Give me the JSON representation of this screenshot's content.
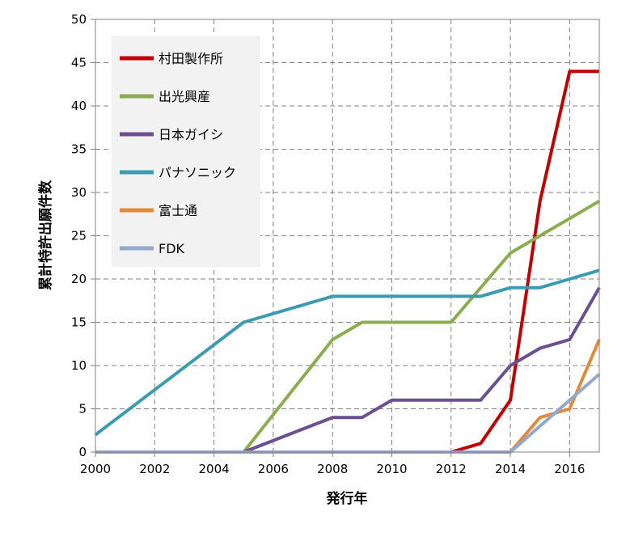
{
  "chart_data": {
    "type": "line",
    "title": "",
    "xlabel": "発行年",
    "ylabel": "累計特許出願件数",
    "xlim": [
      2000,
      2017
    ],
    "ylim": [
      0,
      50
    ],
    "x_ticks": [
      2000,
      2002,
      2004,
      2006,
      2008,
      2010,
      2012,
      2014,
      2016
    ],
    "y_ticks": [
      0,
      5,
      10,
      15,
      20,
      25,
      30,
      35,
      40,
      45,
      50
    ],
    "grid": true,
    "legend_position": "top-left",
    "series": [
      {
        "name": "村田製作所",
        "color": "#c00000",
        "x": [
          2000,
          2012,
          2013,
          2014,
          2015,
          2016,
          2017
        ],
        "y": [
          0,
          0,
          1,
          6,
          29,
          44,
          44
        ]
      },
      {
        "name": "出光興産",
        "color": "#8cac50",
        "x": [
          2000,
          2005,
          2008,
          2009,
          2012,
          2014,
          2015,
          2016,
          2017
        ],
        "y": [
          0,
          0,
          13,
          15,
          15,
          23,
          25,
          27,
          29
        ]
      },
      {
        "name": "日本ガイシ",
        "color": "#6a5090",
        "x": [
          2000,
          2005,
          2008,
          2009,
          2010,
          2013,
          2014,
          2015,
          2016,
          2017
        ],
        "y": [
          0,
          0,
          4,
          4,
          6,
          6,
          10,
          12,
          13,
          19
        ]
      },
      {
        "name": "パナソニック",
        "color": "#3d9bb1",
        "x": [
          2000,
          2005,
          2008,
          2013,
          2014,
          2015,
          2016,
          2017
        ],
        "y": [
          2,
          15,
          18,
          18,
          19,
          19,
          20,
          21
        ]
      },
      {
        "name": "富士通",
        "color": "#e08a3c",
        "x": [
          2000,
          2014,
          2015,
          2016,
          2017
        ],
        "y": [
          0,
          0,
          4,
          5,
          13
        ]
      },
      {
        "name": "FDK",
        "color": "#94a8cc",
        "x": [
          2000,
          2014,
          2015,
          2016,
          2017
        ],
        "y": [
          0,
          0,
          3,
          6,
          9
        ]
      }
    ]
  }
}
